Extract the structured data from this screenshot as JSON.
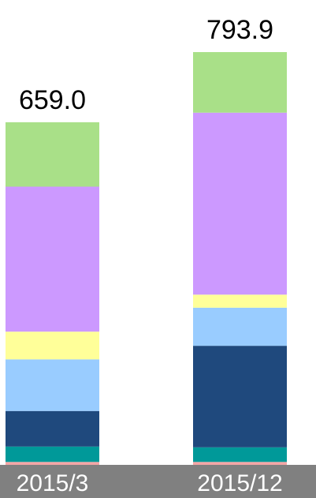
{
  "chart_data": {
    "type": "bar",
    "stacked": true,
    "title": "",
    "xlabel": "",
    "ylabel": "",
    "categories": [
      "2015/3",
      "2015/12"
    ],
    "totals": [
      "659.0",
      "793.9"
    ],
    "ylim": [
      0,
      793.9
    ],
    "legend": "none",
    "grid": false,
    "axis_band_color": "#808080",
    "series": [
      {
        "color": "#f4a6a6",
        "values": [
          5.6,
          5.6
        ]
      },
      {
        "color": "#009999",
        "values": [
          29.6,
          28.1
        ]
      },
      {
        "color": "#1f497d",
        "values": [
          68.4,
          195.3
        ]
      },
      {
        "color": "#99ccff",
        "values": [
          99.3,
          73.3
        ]
      },
      {
        "color": "#ffff99",
        "values": [
          53.3,
          25.1
        ]
      },
      {
        "color": "#cc99ff",
        "values": [
          278.9,
          350.0
        ]
      },
      {
        "color": "#a9e088",
        "values": [
          123.9,
          116.5
        ]
      }
    ]
  }
}
